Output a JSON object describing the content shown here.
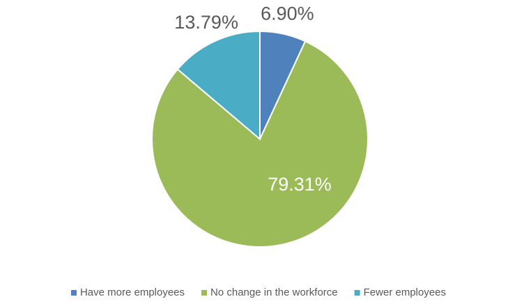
{
  "chart_data": {
    "type": "pie",
    "categories": [
      "Have more employees",
      "No change in the workforce",
      "Fewer employees"
    ],
    "values": [
      6.9,
      79.31,
      13.79
    ],
    "value_labels": [
      "6.90%",
      "79.31%",
      "13.79%"
    ],
    "colors": [
      "#4f81bd",
      "#9bbb59",
      "#4bacc6"
    ],
    "legend": "bottom"
  }
}
